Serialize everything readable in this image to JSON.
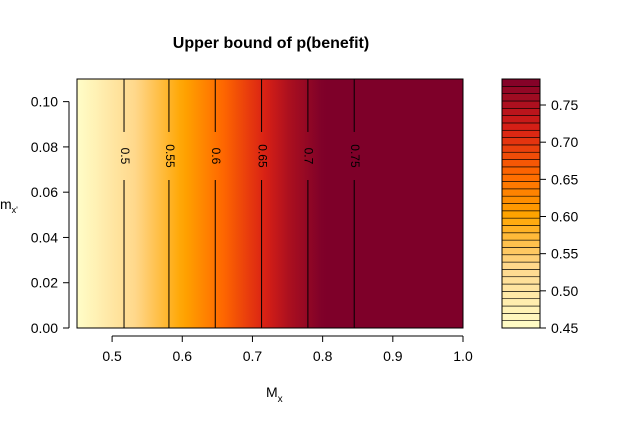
{
  "chart_data": {
    "type": "heatmap",
    "title": "Upper bound of p(benefit)",
    "xlabel": {
      "main": "M",
      "sub": "x"
    },
    "ylabel": {
      "main": "m",
      "sub": "x'"
    },
    "xlim": [
      0.45,
      1.0
    ],
    "ylim": [
      0.0,
      0.11
    ],
    "xticks": [
      "0.5",
      "0.6",
      "0.7",
      "0.8",
      "0.9",
      "1.0"
    ],
    "yticks": [
      "0.00",
      "0.02",
      "0.04",
      "0.06",
      "0.08",
      "0.10"
    ],
    "value_range": [
      0.45,
      0.785
    ],
    "value_profile": [
      [
        0.45,
        0.45
      ],
      [
        0.46,
        0.46
      ],
      [
        0.47,
        0.47
      ],
      [
        0.48,
        0.48
      ],
      [
        0.49,
        0.49
      ],
      [
        0.5,
        0.5
      ],
      [
        0.55,
        0.55
      ],
      [
        0.6,
        0.6
      ],
      [
        0.65,
        0.65
      ],
      [
        0.7,
        0.7
      ],
      [
        0.75,
        0.75
      ],
      [
        0.8,
        0.785
      ],
      [
        1.0,
        0.785
      ]
    ],
    "contours": [
      {
        "label": "0.5",
        "x": 0.517
      },
      {
        "label": "0.55",
        "x": 0.581
      },
      {
        "label": "0.6",
        "x": 0.647
      },
      {
        "label": "0.65",
        "x": 0.713
      },
      {
        "label": "0.7",
        "x": 0.779
      },
      {
        "label": "0.75",
        "x": 0.845
      }
    ],
    "contour_label_y": 0.076,
    "colorbar": {
      "ticks": [
        "0.45",
        "0.50",
        "0.55",
        "0.60",
        "0.65",
        "0.70",
        "0.75"
      ],
      "levels": 34
    },
    "colors": {
      "low": "#fffdc8",
      "mid1": "#ffd78a",
      "mid2": "#ffa500",
      "mid3": "#ff6800",
      "mid4": "#d92015",
      "high": "#7e0029"
    }
  }
}
